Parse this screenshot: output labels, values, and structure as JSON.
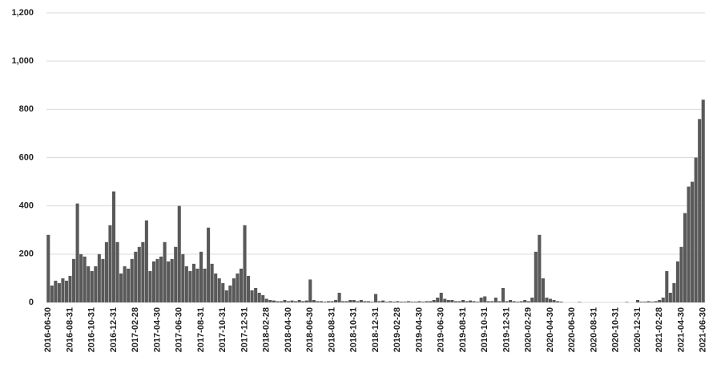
{
  "chart_data": {
    "type": "bar",
    "categories": [
      "2016-06-30",
      null,
      null,
      null,
      null,
      null,
      "2016-08-31",
      null,
      null,
      null,
      null,
      null,
      "2016-10-31",
      null,
      null,
      null,
      null,
      null,
      "2016-12-31",
      null,
      null,
      null,
      null,
      null,
      "2017-02-28",
      null,
      null,
      null,
      null,
      null,
      "2017-04-30",
      null,
      null,
      null,
      null,
      null,
      "2017-06-30",
      null,
      null,
      null,
      null,
      null,
      "2017-08-31",
      null,
      null,
      null,
      null,
      null,
      "2017-10-31",
      null,
      null,
      null,
      null,
      null,
      "2017-12-31",
      null,
      null,
      null,
      null,
      null,
      "2018-02-28",
      null,
      null,
      null,
      null,
      null,
      "2018-04-30",
      null,
      null,
      null,
      null,
      null,
      "2018-06-30",
      null,
      null,
      null,
      null,
      null,
      "2018-08-31",
      null,
      null,
      null,
      null,
      null,
      "2018-10-31",
      null,
      null,
      null,
      null,
      null,
      "2018-12-31",
      null,
      null,
      null,
      null,
      null,
      "2019-02-28",
      null,
      null,
      null,
      null,
      null,
      "2019-04-30",
      null,
      null,
      null,
      null,
      null,
      "2019-06-30",
      null,
      null,
      null,
      null,
      null,
      "2019-08-31",
      null,
      null,
      null,
      null,
      null,
      "2019-10-31",
      null,
      null,
      null,
      null,
      null,
      "2019-12-31",
      null,
      null,
      null,
      null,
      null,
      "2020-02-29",
      null,
      null,
      null,
      null,
      null,
      "2020-04-30",
      null,
      null,
      null,
      null,
      null,
      "2020-06-30",
      null,
      null,
      null,
      null,
      null,
      "2020-08-31",
      null,
      null,
      null,
      null,
      null,
      "2020-10-31",
      null,
      null,
      null,
      null,
      null,
      "2020-12-31",
      null,
      null,
      null,
      null,
      null,
      "2021-02-28",
      null,
      null,
      null,
      null,
      null,
      "2021-04-30",
      null,
      null,
      null,
      null,
      null,
      "2021-06-30"
    ],
    "values": [
      280,
      70,
      90,
      80,
      100,
      90,
      110,
      180,
      410,
      200,
      190,
      150,
      130,
      150,
      200,
      180,
      250,
      320,
      460,
      250,
      120,
      150,
      140,
      180,
      210,
      230,
      250,
      340,
      130,
      170,
      180,
      190,
      250,
      170,
      180,
      230,
      400,
      200,
      150,
      130,
      160,
      140,
      210,
      140,
      310,
      160,
      120,
      100,
      80,
      50,
      70,
      100,
      120,
      140,
      320,
      110,
      50,
      60,
      40,
      30,
      15,
      10,
      8,
      5,
      5,
      10,
      5,
      8,
      5,
      10,
      5,
      8,
      95,
      10,
      5,
      5,
      3,
      5,
      5,
      10,
      40,
      5,
      5,
      10,
      10,
      5,
      10,
      5,
      5,
      3,
      35,
      5,
      8,
      3,
      5,
      3,
      5,
      3,
      3,
      5,
      3,
      3,
      5,
      3,
      5,
      5,
      10,
      20,
      40,
      15,
      10,
      10,
      5,
      5,
      10,
      5,
      8,
      5,
      3,
      20,
      25,
      5,
      5,
      20,
      5,
      60,
      5,
      10,
      5,
      3,
      5,
      10,
      5,
      20,
      210,
      280,
      100,
      20,
      15,
      10,
      5,
      3,
      0,
      0,
      0,
      0,
      2,
      0,
      0,
      0,
      0,
      0,
      0,
      0,
      0,
      0,
      0,
      0,
      0,
      2,
      0,
      0,
      10,
      3,
      3,
      5,
      3,
      5,
      10,
      20,
      130,
      40,
      80,
      170,
      230,
      370,
      480,
      500,
      600,
      760,
      840
    ],
    "color": "#595959",
    "ylim": [
      0,
      1200
    ],
    "yticks": [
      0,
      200,
      400,
      600,
      800,
      {
        "value": 1000,
        "label": "1,000"
      },
      {
        "value": 1200,
        "label": "1,200"
      }
    ],
    "grid": true
  }
}
